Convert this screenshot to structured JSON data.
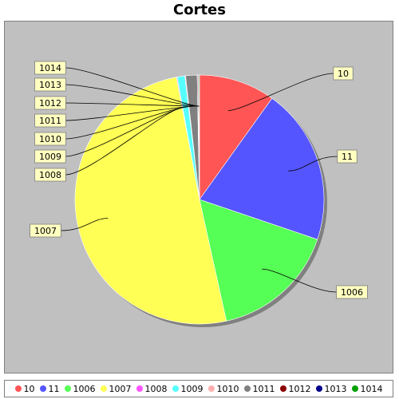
{
  "chart_data": {
    "type": "pie",
    "title": "Cortes",
    "categories": [
      "10",
      "11",
      "1006",
      "1007",
      "1008",
      "1009",
      "1010",
      "1011",
      "1012",
      "1013",
      "1014"
    ],
    "values": [
      10.0,
      20.5,
      16.5,
      51.0,
      0.1,
      1.0,
      0.1,
      1.5,
      0.1,
      0.1,
      0.1
    ],
    "colors": [
      "#ff5555",
      "#5555ff",
      "#55ff55",
      "#ffff55",
      "#ff55ff",
      "#55ffff",
      "#ffafaf",
      "#808080",
      "#8b0000",
      "#00008b",
      "#00a000"
    ],
    "legend_position": "bottom",
    "background": "#c0c0c0"
  }
}
